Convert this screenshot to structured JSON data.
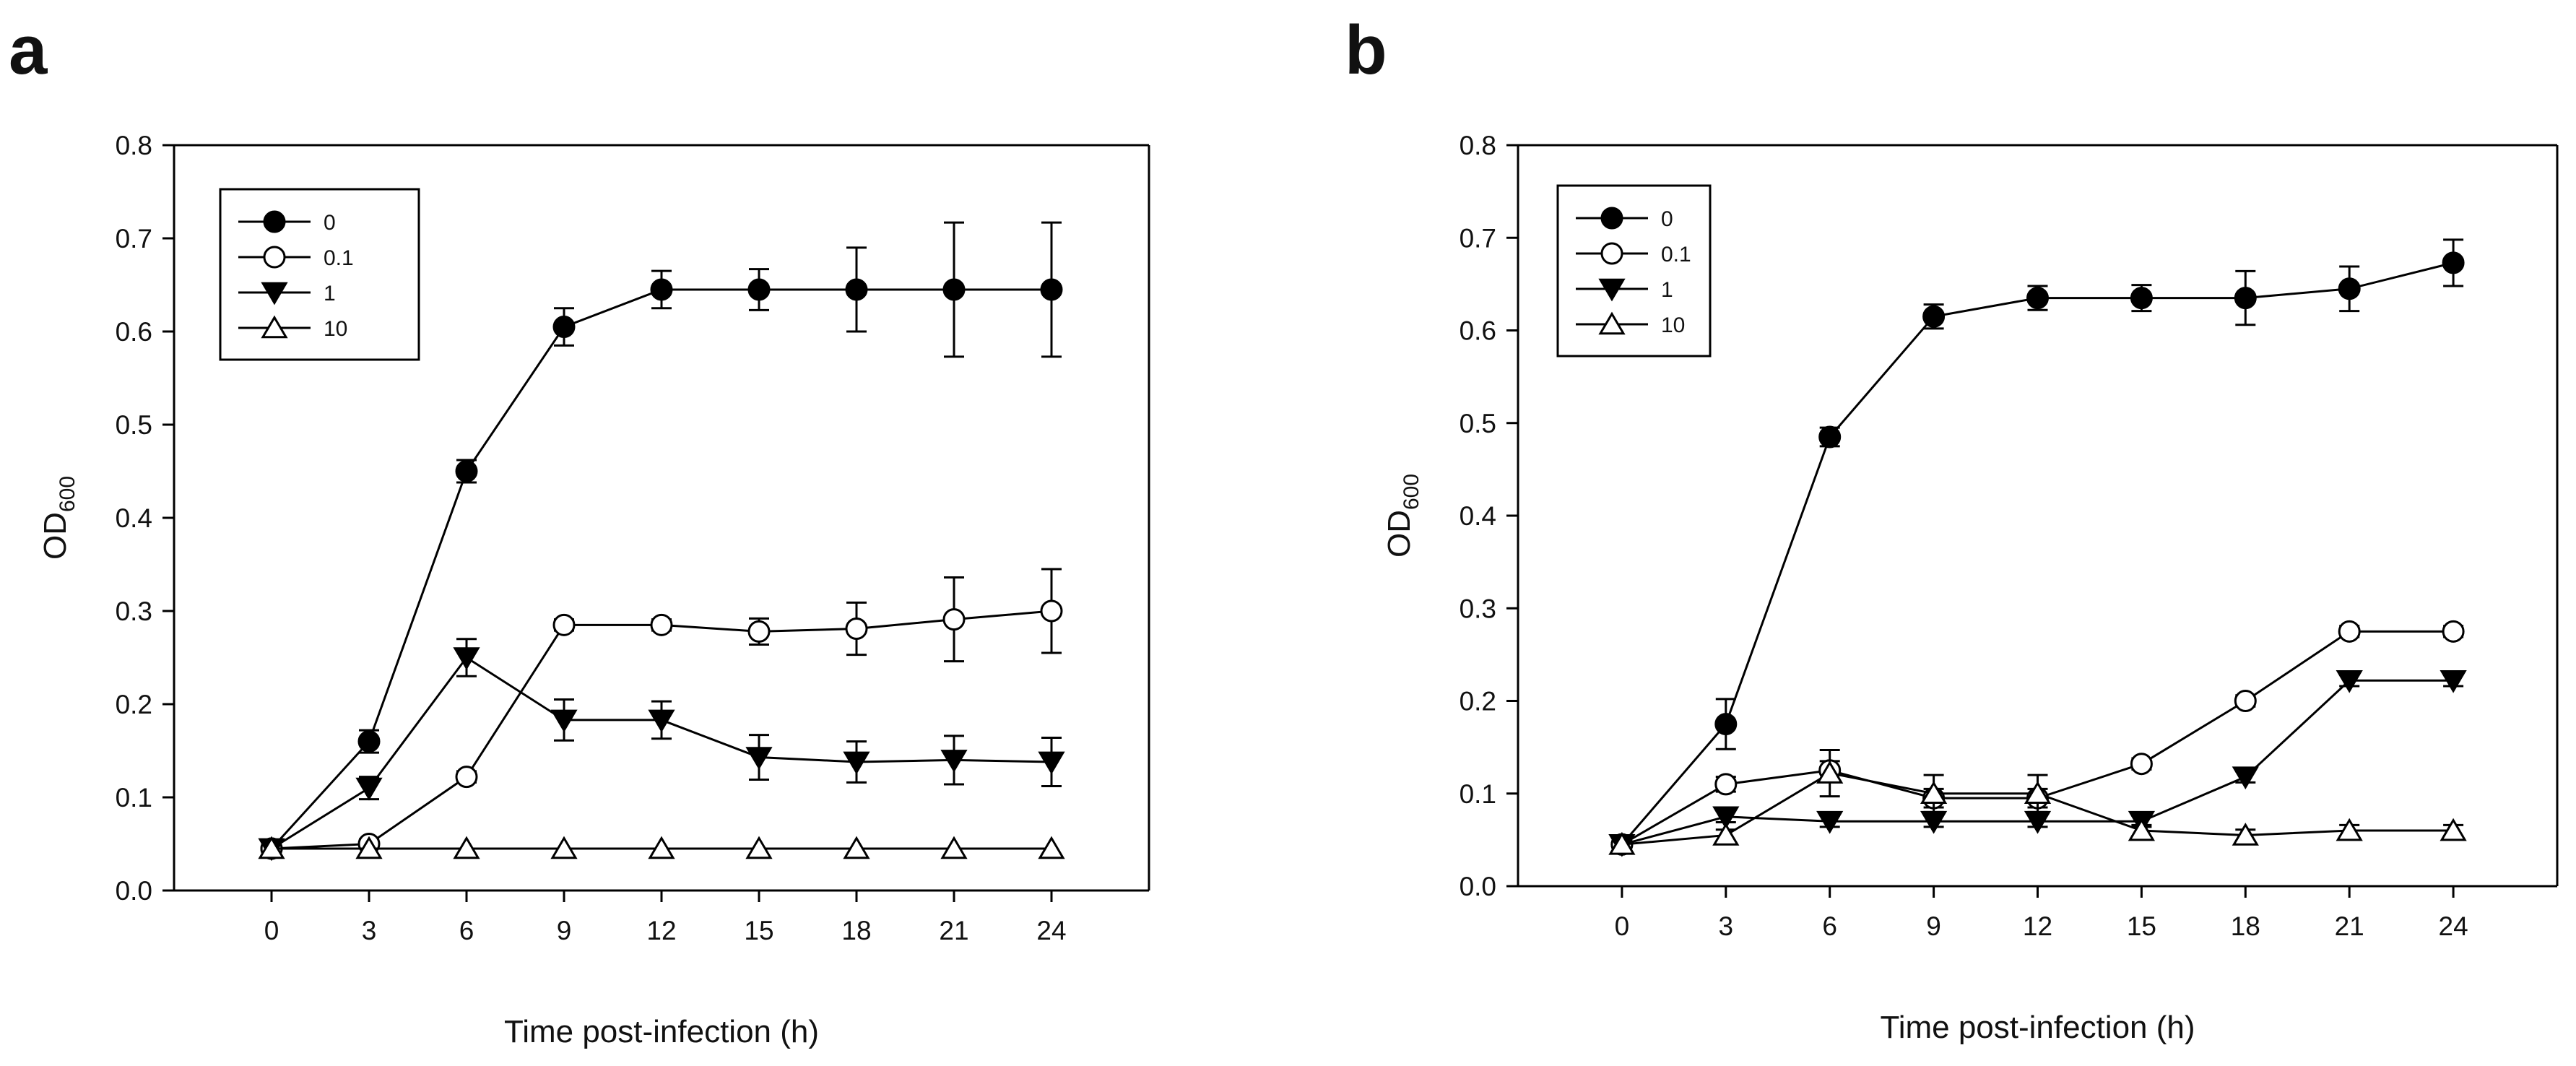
{
  "chart_data": [
    {
      "type": "line",
      "panel_label": "a",
      "xlabel": "Time post-infection (h)",
      "ylabel": "OD",
      "ylabel_sub": "600",
      "x": [
        0,
        3,
        6,
        9,
        12,
        15,
        18,
        21,
        24
      ],
      "x_ticks": [
        "0",
        "3",
        "6",
        "9",
        "12",
        "15",
        "18",
        "21",
        "24"
      ],
      "y_ticks": [
        "0.0",
        "0.1",
        "0.2",
        "0.3",
        "0.4",
        "0.5",
        "0.6",
        "0.7",
        "0.8"
      ],
      "xlim": [
        -3,
        27
      ],
      "ylim": [
        0,
        0.8
      ],
      "legend_position": "top-left",
      "series": [
        {
          "name": "0",
          "marker": "filled-circle",
          "values": [
            0.045,
            0.16,
            0.45,
            0.605,
            0.645,
            0.645,
            0.645,
            0.645,
            0.645
          ],
          "errors": [
            0.005,
            0.012,
            0.012,
            0.02,
            0.02,
            0.022,
            0.045,
            0.072,
            0.072
          ]
        },
        {
          "name": "0.1",
          "marker": "open-circle",
          "values": [
            0.045,
            0.05,
            0.122,
            0.285,
            0.285,
            0.278,
            0.281,
            0.291,
            0.3
          ],
          "errors": [
            0.005,
            0.005,
            0.006,
            0.006,
            0.006,
            0.014,
            0.028,
            0.045,
            0.045
          ]
        },
        {
          "name": "1",
          "marker": "filled-triangle-down",
          "values": [
            0.045,
            0.11,
            0.25,
            0.183,
            0.183,
            0.143,
            0.138,
            0.14,
            0.138
          ],
          "errors": [
            0.005,
            0.012,
            0.02,
            0.022,
            0.02,
            0.024,
            0.022,
            0.026,
            0.026
          ]
        },
        {
          "name": "10",
          "marker": "open-triangle-up",
          "values": [
            0.045,
            0.045,
            0.045,
            0.045,
            0.045,
            0.045,
            0.045,
            0.045,
            0.045
          ],
          "errors": [
            0,
            0,
            0,
            0,
            0,
            0,
            0,
            0,
            0
          ]
        }
      ]
    },
    {
      "type": "line",
      "panel_label": "b",
      "xlabel": "Time post-infection (h)",
      "ylabel": "OD",
      "ylabel_sub": "600",
      "x": [
        0,
        3,
        6,
        9,
        12,
        15,
        18,
        21,
        24
      ],
      "x_ticks": [
        "0",
        "3",
        "6",
        "9",
        "12",
        "15",
        "18",
        "21",
        "24"
      ],
      "y_ticks": [
        "0.0",
        "0.1",
        "0.2",
        "0.3",
        "0.4",
        "0.5",
        "0.6",
        "0.7",
        "0.8"
      ],
      "xlim": [
        -3,
        27
      ],
      "ylim": [
        0,
        0.8
      ],
      "legend_position": "top-left",
      "series": [
        {
          "name": "0",
          "marker": "filled-circle",
          "values": [
            0.045,
            0.175,
            0.485,
            0.615,
            0.635,
            0.635,
            0.635,
            0.645,
            0.673
          ],
          "errors": [
            0.005,
            0.027,
            0.01,
            0.013,
            0.013,
            0.014,
            0.029,
            0.024,
            0.025
          ]
        },
        {
          "name": "0.1",
          "marker": "open-circle",
          "values": [
            0.045,
            0.11,
            0.125,
            0.095,
            0.095,
            0.132,
            0.2,
            0.275,
            0.275
          ],
          "errors": [
            0.005,
            0.008,
            0.01,
            0.01,
            0.01,
            0.006,
            0.006,
            0.006,
            0.006
          ]
        },
        {
          "name": "1",
          "marker": "filled-triangle-down",
          "values": [
            0.045,
            0.075,
            0.07,
            0.07,
            0.07,
            0.07,
            0.118,
            0.222,
            0.222
          ],
          "errors": [
            0.005,
            0.006,
            0.006,
            0.006,
            0.006,
            0.006,
            0.006,
            0.006,
            0.006
          ]
        },
        {
          "name": "10",
          "marker": "open-triangle-up",
          "values": [
            0.045,
            0.055,
            0.122,
            0.1,
            0.1,
            0.06,
            0.055,
            0.06,
            0.06
          ],
          "errors": [
            0,
            0.006,
            0.025,
            0.02,
            0.02,
            0.006,
            0.006,
            0.006,
            0.006
          ]
        }
      ]
    }
  ]
}
